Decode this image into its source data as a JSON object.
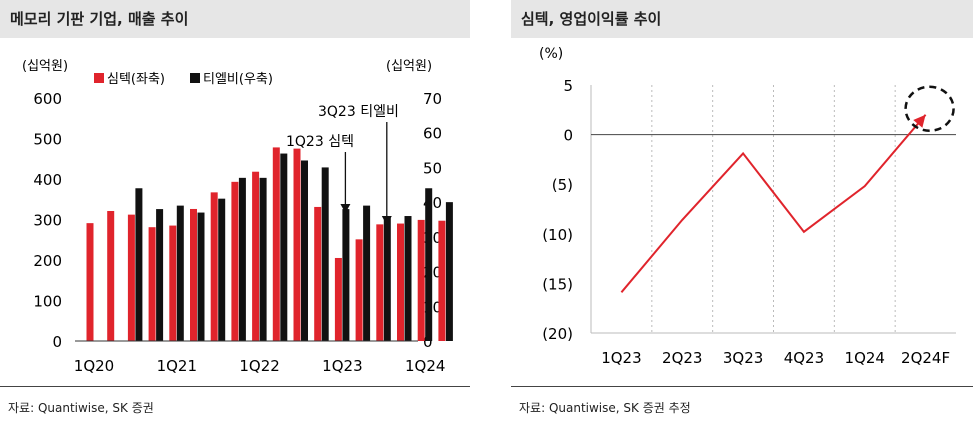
{
  "left_panel": {
    "title": "메모리 기판 기업, 매출 추이",
    "source": "자료: Quantiwise, SK 증권"
  },
  "right_panel": {
    "title": "심텍, 영업이익률 추이",
    "source": "자료: Quantiwise, SK 증권 추정"
  },
  "colors": {
    "simtech": "#e0242c",
    "tlb": "#111111",
    "header_bg": "#e6e6e6"
  },
  "chart_data": [
    {
      "type": "bar",
      "title": "메모리 기판 기업, 매출 추이",
      "y_left_unit": "(십억원)",
      "y_right_unit": "(십억원)",
      "y_left_lim": [
        0,
        600
      ],
      "y_right_lim": [
        0,
        70
      ],
      "y_left_ticks": [
        "600",
        "500",
        "400",
        "300",
        "200",
        "100",
        "0"
      ],
      "y_right_ticks": [
        "70",
        "60",
        "50",
        "40",
        "30",
        "20",
        "10",
        "0"
      ],
      "x_tick_labels": [
        "1Q20",
        "1Q21",
        "1Q22",
        "1Q23",
        "1Q24"
      ],
      "categories": [
        "1Q20",
        "2Q20",
        "3Q20",
        "4Q20",
        "1Q21",
        "2Q21",
        "3Q21",
        "4Q21",
        "1Q22",
        "2Q22",
        "3Q22",
        "4Q22",
        "1Q23",
        "2Q23",
        "3Q23",
        "4Q23",
        "1Q24",
        "2Q24"
      ],
      "series": [
        {
          "name": "심텍(좌축)",
          "axis": "left",
          "values": [
            291,
            321,
            312,
            281,
            285,
            326,
            367,
            393,
            418,
            478,
            475,
            331,
            205,
            251,
            288,
            290,
            299,
            297
          ]
        },
        {
          "name": "티엘비(우축)",
          "axis": "right",
          "values": [
            null,
            null,
            44,
            38,
            39,
            37,
            41,
            47,
            47,
            54,
            52,
            50,
            38,
            39,
            36,
            36,
            44,
            40
          ]
        }
      ],
      "annotations": [
        "1Q23 심텍",
        "3Q23 티엘비"
      ]
    },
    {
      "type": "line",
      "title": "심텍, 영업이익률 추이",
      "y_unit": "(%)",
      "ylim": [
        -20,
        5
      ],
      "y_ticks": [
        "5",
        "0",
        "(5)",
        "(10)",
        "(15)",
        "(20)"
      ],
      "categories": [
        "1Q23",
        "2Q23",
        "3Q23",
        "4Q23",
        "1Q24",
        "2Q24F"
      ],
      "values": [
        -15.9,
        -8.6,
        -1.9,
        -9.8,
        -5.2,
        2.0
      ]
    }
  ]
}
